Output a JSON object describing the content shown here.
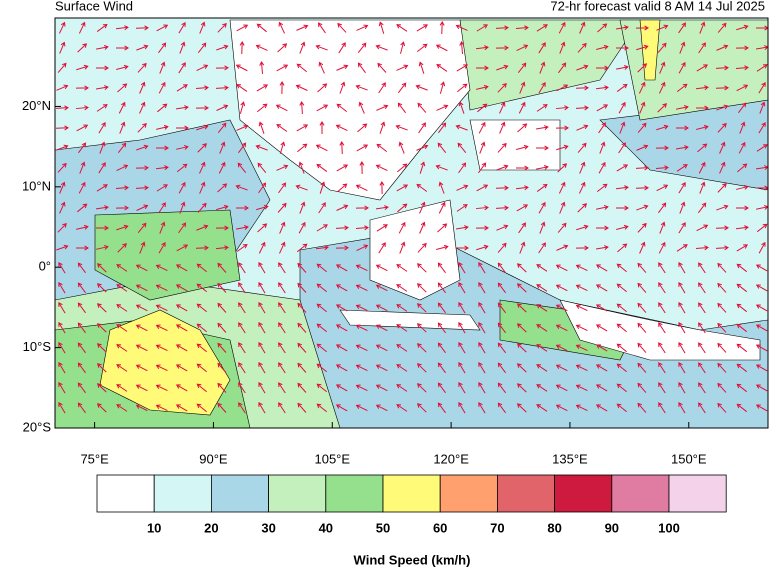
{
  "title": "Surface Wind",
  "subtitle": "72-hr forecast valid 8 AM 14 Jul 2025",
  "map": {
    "lon_range": [
      70,
      160
    ],
    "lat_range": [
      -20,
      31
    ],
    "lon_ticks": [
      {
        "value": 75,
        "label": "75°E"
      },
      {
        "value": 90,
        "label": "90°E"
      },
      {
        "value": 105,
        "label": "105°E"
      },
      {
        "value": 120,
        "label": "120°E"
      },
      {
        "value": 135,
        "label": "135°E"
      },
      {
        "value": 150,
        "label": "150°E"
      }
    ],
    "lat_ticks": [
      {
        "value": 20,
        "label": "20°N"
      },
      {
        "value": 10,
        "label": "10°N"
      },
      {
        "value": 0,
        "label": "0°"
      },
      {
        "value": -10,
        "label": "10°S"
      },
      {
        "value": -20,
        "label": "20°S"
      }
    ],
    "arrow_color": "#e0103a"
  },
  "colorbar": {
    "levels": [
      10,
      20,
      30,
      40,
      50,
      60,
      70,
      80,
      90,
      100
    ],
    "colors": [
      "#ffffff",
      "#d4f6f4",
      "#aad7e8",
      "#c3f0bd",
      "#95e08c",
      "#fffa78",
      "#ffa06e",
      "#e1646a",
      "#cf1a40",
      "#e07ca2",
      "#f3d2ea"
    ],
    "label": "Wind Speed (km/h)"
  }
}
